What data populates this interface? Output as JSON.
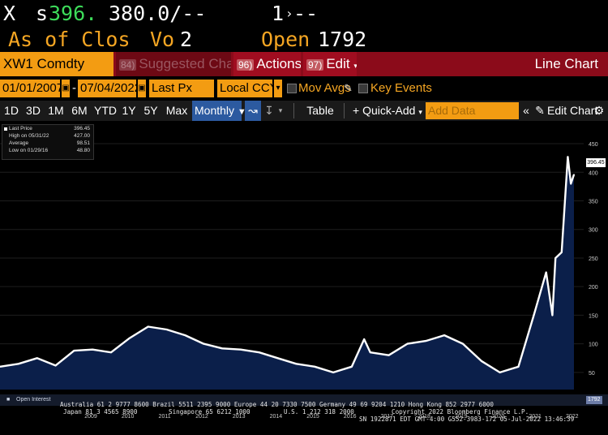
{
  "header": {
    "line1": {
      "prefix": "X",
      "s_label": "s",
      "price": "396.",
      "mid": "380.0/--",
      "right": "1",
      "right_tail": "--"
    },
    "line2": {
      "as_of": "As of Clos",
      "vo_label": "Vo",
      "vo_value": "2",
      "open_label": "Open",
      "open_value": "1792"
    }
  },
  "toolbar1": {
    "ticker": "XW1 Comdty",
    "suggested_num": "84)",
    "suggested": "Suggested Charts",
    "actions_num": "96)",
    "actions": "Actions",
    "edit_num": "97)",
    "edit": "Edit",
    "chart_type": "Line Chart"
  },
  "toolbar2": {
    "start_date": "01/01/2007",
    "dash": "-",
    "end_date": "07/04/2022",
    "field": "Last Px",
    "currency": "Local CCY",
    "mov_avgs": "Mov Avgs",
    "key_events": "Key Events"
  },
  "toolbar3": {
    "periods": [
      "1D",
      "3D",
      "1M",
      "6M",
      "YTD",
      "1Y",
      "5Y",
      "Max"
    ],
    "frequency": "Monthly",
    "table": "Table",
    "quick_add": "Quick-Add",
    "add_data_placeholder": "Add Data",
    "edit_chart": "Edit Chart"
  },
  "legend": {
    "last_price_label": "Last Price",
    "last_price_value": "396.45",
    "high_label": "High on 05/31/22",
    "high_value": "427.00",
    "avg_label": "Average",
    "avg_value": "98.51",
    "low_label": "Low on 01/29/16",
    "low_value": "48.80"
  },
  "last_value_tag": "396.45",
  "open_interest": {
    "label": "Open Interest",
    "value": "1792"
  },
  "footer": {
    "line1": "Australia 61 2 9777 8600 Brazil 5511 2395 9000 Europe 44 20 7330 7500 Germany 49 69 9204 1210 Hong Kong 852 2977 6000",
    "line2a": "Japan 81 3 4565 8900",
    "line2b": "Singapore 65 6212 1000",
    "line2c": "U.S. 1 212 318 2000",
    "line2d": "Copyright 2022 Bloomberg Finance L.P.",
    "line3": "SN 1922871 EDT  GMT-4:00 G552-3983-172 05-Jul-2022 13:46:39"
  },
  "colors": {
    "line": "#ffffff",
    "area": "#0b1f4a",
    "accent": "#f39c12",
    "toolbar": "#8b0b1a"
  },
  "chart_data": {
    "type": "area",
    "ylim": [
      20,
      460
    ],
    "yticks": [
      50,
      100,
      150,
      200,
      250,
      300,
      350,
      400,
      450
    ],
    "xticks": [
      "2009",
      "2010",
      "2011",
      "2012",
      "2013",
      "2014",
      "2015",
      "2016",
      "2017",
      "2018",
      "2019",
      "2020",
      "2021",
      "2022"
    ],
    "series": [
      {
        "name": "Last Price",
        "x": [
          "2007-01",
          "2007-07",
          "2008-01",
          "2008-07",
          "2009-01",
          "2009-07",
          "2010-01",
          "2010-07",
          "2011-01",
          "2011-07",
          "2012-01",
          "2012-07",
          "2013-01",
          "2013-07",
          "2014-01",
          "2014-07",
          "2015-01",
          "2015-07",
          "2016-01",
          "2016-07",
          "2016-11",
          "2017-01",
          "2017-07",
          "2018-01",
          "2018-07",
          "2019-01",
          "2019-07",
          "2020-01",
          "2020-07",
          "2021-01",
          "2021-06",
          "2021-10",
          "2021-12",
          "2022-01",
          "2022-03",
          "2022-05",
          "2022-06",
          "2022-07"
        ],
        "values": [
          60,
          65,
          75,
          62,
          88,
          90,
          85,
          110,
          130,
          125,
          115,
          100,
          92,
          90,
          85,
          75,
          65,
          60,
          50,
          60,
          108,
          85,
          80,
          100,
          105,
          115,
          100,
          70,
          50,
          60,
          150,
          225,
          150,
          250,
          260,
          427,
          380,
          396
        ]
      }
    ]
  }
}
